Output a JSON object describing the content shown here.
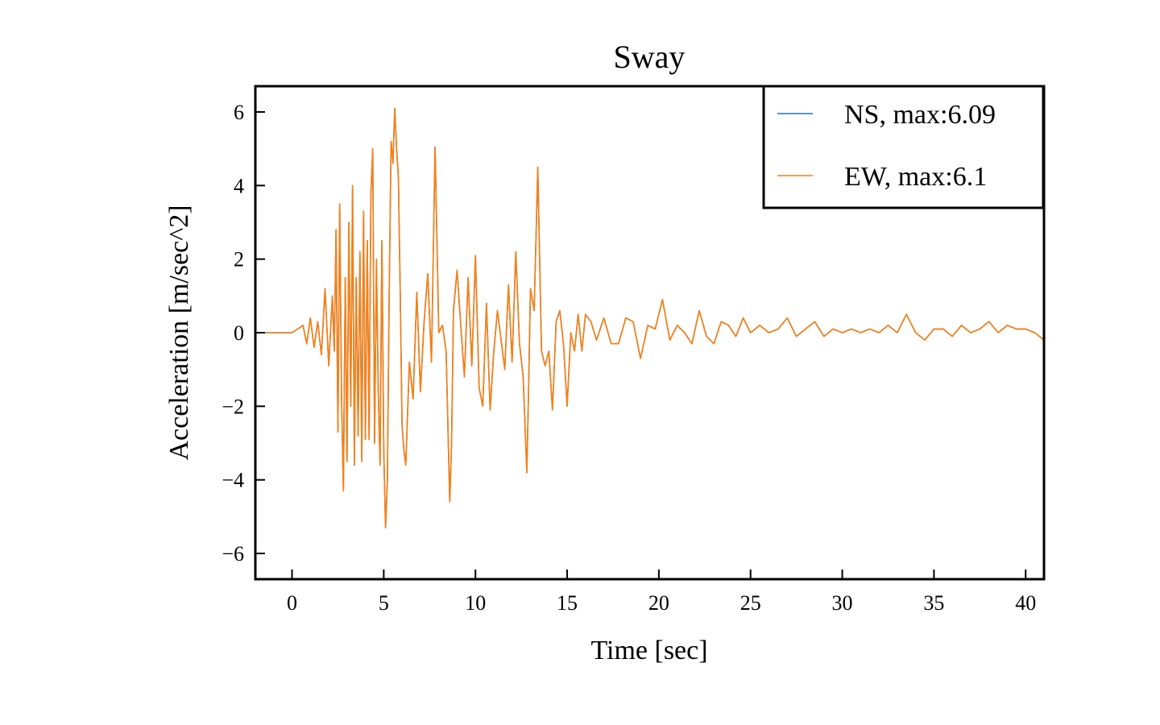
{
  "chart_data": {
    "type": "line",
    "title": "Sway",
    "xlabel": "Time [sec]",
    "ylabel": "Acceleration [m/sec^2]",
    "xlim": [
      -2,
      41
    ],
    "ylim": [
      -6.7,
      6.7
    ],
    "xticks": [
      0,
      5,
      10,
      15,
      20,
      25,
      30,
      35,
      40
    ],
    "yticks": [
      -6,
      -4,
      -2,
      0,
      2,
      4,
      6
    ],
    "ytick_labels": [
      "−6",
      "−4",
      "−2",
      "0",
      "2",
      "4",
      "6"
    ],
    "grid": false,
    "legend_position": "top-right",
    "series": [
      {
        "name": "NS, max:6.09",
        "color": "#1f77b4",
        "x": [
          -2.0,
          0.0,
          0.6,
          0.8,
          1.0,
          1.2,
          1.4,
          1.6,
          1.8,
          2.0,
          2.2,
          2.3,
          2.4,
          2.5,
          2.6,
          2.7,
          2.8,
          2.9,
          3.0,
          3.1,
          3.2,
          3.3,
          3.4,
          3.5,
          3.6,
          3.7,
          3.8,
          3.9,
          4.0,
          4.1,
          4.2,
          4.3,
          4.4,
          4.5,
          4.6,
          4.7,
          4.8,
          4.9,
          5.0,
          5.1,
          5.2,
          5.3,
          5.4,
          5.5,
          5.6,
          5.7,
          5.8,
          5.9,
          6.0,
          6.1,
          6.2,
          6.4,
          6.6,
          6.8,
          7.0,
          7.2,
          7.4,
          7.6,
          7.8,
          8.0,
          8.2,
          8.4,
          8.6,
          8.7,
          8.8,
          9.0,
          9.2,
          9.4,
          9.6,
          9.8,
          10.0,
          10.2,
          10.4,
          10.6,
          10.8,
          11.0,
          11.2,
          11.4,
          11.6,
          11.8,
          12.0,
          12.2,
          12.4,
          12.6,
          12.8,
          12.9,
          13.0,
          13.2,
          13.4,
          13.6,
          13.8,
          14.0,
          14.2,
          14.4,
          14.6,
          14.8,
          15.0,
          15.2,
          15.4,
          15.6,
          15.8,
          16.0,
          16.3,
          16.6,
          17.0,
          17.4,
          17.8,
          18.2,
          18.6,
          19.0,
          19.4,
          19.8,
          20.2,
          20.6,
          21.0,
          21.4,
          21.8,
          22.2,
          22.6,
          23.0,
          23.4,
          23.8,
          24.2,
          24.6,
          25.0,
          25.5,
          26.0,
          26.5,
          27.0,
          27.5,
          28.0,
          28.5,
          29.0,
          29.5,
          30.0,
          30.5,
          31.0,
          31.5,
          32.0,
          32.5,
          33.0,
          33.5,
          34.0,
          34.5,
          35.0,
          35.5,
          36.0,
          36.5,
          37.0,
          37.5,
          38.0,
          38.5,
          39.0,
          39.5,
          40.0,
          40.5,
          41.0
        ],
        "y": [
          0.0,
          0.0,
          0.2,
          -0.3,
          0.4,
          -0.4,
          0.3,
          -0.6,
          1.2,
          -0.9,
          1.0,
          -0.5,
          2.8,
          -2.7,
          3.5,
          -1.8,
          -4.3,
          1.5,
          -3.5,
          3.0,
          -2.0,
          4.0,
          -3.6,
          1.5,
          -2.8,
          2.2,
          -3.5,
          3.3,
          -2.9,
          2.5,
          -2.9,
          3.8,
          5.0,
          -3.0,
          2.0,
          -1.5,
          -3.6,
          2.5,
          -3.2,
          -5.3,
          -4.0,
          1.2,
          5.2,
          4.6,
          6.09,
          5.0,
          4.2,
          1.0,
          -2.5,
          -3.2,
          -3.6,
          -0.8,
          -1.8,
          1.1,
          -1.6,
          0.3,
          1.6,
          -0.8,
          5.05,
          0.0,
          0.2,
          -0.5,
          -4.6,
          -3.0,
          0.6,
          1.7,
          0.2,
          -1.2,
          1.5,
          -0.9,
          2.1,
          -1.5,
          -2.0,
          0.8,
          -2.1,
          -0.5,
          0.6,
          -0.2,
          -1.0,
          1.3,
          -0.8,
          2.2,
          -0.3,
          -1.2,
          -3.8,
          -1.5,
          1.2,
          0.6,
          4.5,
          -0.5,
          -0.9,
          -0.5,
          -2.1,
          0.3,
          0.6,
          -0.3,
          -2.0,
          0.0,
          -0.5,
          0.5,
          -0.5,
          0.5,
          0.3,
          -0.2,
          0.4,
          -0.3,
          -0.3,
          0.4,
          0.3,
          -0.7,
          0.2,
          0.1,
          0.9,
          -0.2,
          0.2,
          0.0,
          -0.3,
          0.6,
          -0.1,
          -0.3,
          0.3,
          0.2,
          -0.1,
          0.4,
          0.0,
          0.2,
          0.0,
          0.1,
          0.4,
          -0.1,
          0.1,
          0.3,
          -0.1,
          0.1,
          0.0,
          0.1,
          0.0,
          0.1,
          0.0,
          0.2,
          0.0,
          0.5,
          0.0,
          -0.2,
          0.1,
          0.1,
          -0.1,
          0.2,
          0.0,
          0.1,
          0.3,
          0.0,
          0.2,
          0.1,
          0.1,
          0.0,
          -0.2
        ]
      },
      {
        "name": "EW, max:6.1",
        "color": "#ff7f0e",
        "x": [
          -2.0,
          0.0,
          0.6,
          0.8,
          1.0,
          1.2,
          1.4,
          1.6,
          1.8,
          2.0,
          2.2,
          2.3,
          2.4,
          2.5,
          2.6,
          2.7,
          2.8,
          2.9,
          3.0,
          3.1,
          3.2,
          3.3,
          3.4,
          3.5,
          3.6,
          3.7,
          3.8,
          3.9,
          4.0,
          4.1,
          4.2,
          4.3,
          4.4,
          4.5,
          4.6,
          4.7,
          4.8,
          4.9,
          5.0,
          5.1,
          5.2,
          5.3,
          5.4,
          5.5,
          5.6,
          5.7,
          5.8,
          5.9,
          6.0,
          6.1,
          6.2,
          6.4,
          6.6,
          6.8,
          7.0,
          7.2,
          7.4,
          7.6,
          7.8,
          8.0,
          8.2,
          8.4,
          8.6,
          8.7,
          8.8,
          9.0,
          9.2,
          9.4,
          9.6,
          9.8,
          10.0,
          10.2,
          10.4,
          10.6,
          10.8,
          11.0,
          11.2,
          11.4,
          11.6,
          11.8,
          12.0,
          12.2,
          12.4,
          12.6,
          12.8,
          12.9,
          13.0,
          13.2,
          13.4,
          13.6,
          13.8,
          14.0,
          14.2,
          14.4,
          14.6,
          14.8,
          15.0,
          15.2,
          15.4,
          15.6,
          15.8,
          16.0,
          16.3,
          16.6,
          17.0,
          17.4,
          17.8,
          18.2,
          18.6,
          19.0,
          19.4,
          19.8,
          20.2,
          20.6,
          21.0,
          21.4,
          21.8,
          22.2,
          22.6,
          23.0,
          23.4,
          23.8,
          24.2,
          24.6,
          25.0,
          25.5,
          26.0,
          26.5,
          27.0,
          27.5,
          28.0,
          28.5,
          29.0,
          29.5,
          30.0,
          30.5,
          31.0,
          31.5,
          32.0,
          32.5,
          33.0,
          33.5,
          34.0,
          34.5,
          35.0,
          35.5,
          36.0,
          36.5,
          37.0,
          37.5,
          38.0,
          38.5,
          39.0,
          39.5,
          40.0,
          40.5,
          41.0
        ],
        "y": [
          0.0,
          0.0,
          0.2,
          -0.3,
          0.4,
          -0.4,
          0.3,
          -0.6,
          1.2,
          -0.9,
          1.0,
          -0.5,
          2.8,
          -2.7,
          3.5,
          -1.8,
          -4.3,
          1.5,
          -3.5,
          3.0,
          -2.0,
          4.0,
          -3.6,
          1.5,
          -2.8,
          2.2,
          -3.5,
          3.3,
          -2.9,
          2.5,
          -2.9,
          3.8,
          5.0,
          -3.0,
          2.0,
          -1.5,
          -3.6,
          2.5,
          -3.2,
          -5.3,
          -4.0,
          1.2,
          5.2,
          4.6,
          6.1,
          5.0,
          4.2,
          1.0,
          -2.5,
          -3.2,
          -3.6,
          -0.8,
          -1.8,
          1.1,
          -1.6,
          0.3,
          1.6,
          -0.8,
          5.05,
          0.0,
          0.2,
          -0.5,
          -4.6,
          -3.0,
          0.6,
          1.7,
          0.2,
          -1.2,
          1.5,
          -0.9,
          2.1,
          -1.5,
          -2.0,
          0.8,
          -2.1,
          -0.5,
          0.6,
          -0.2,
          -1.0,
          1.3,
          -0.8,
          2.2,
          -0.3,
          -1.2,
          -3.8,
          -1.5,
          1.2,
          0.6,
          4.5,
          -0.5,
          -0.9,
          -0.5,
          -2.1,
          0.3,
          0.6,
          -0.3,
          -2.0,
          0.0,
          -0.5,
          0.5,
          -0.5,
          0.5,
          0.3,
          -0.2,
          0.4,
          -0.3,
          -0.3,
          0.4,
          0.3,
          -0.7,
          0.2,
          0.1,
          0.9,
          -0.2,
          0.2,
          0.0,
          -0.3,
          0.6,
          -0.1,
          -0.3,
          0.3,
          0.2,
          -0.1,
          0.4,
          0.0,
          0.2,
          0.0,
          0.1,
          0.4,
          -0.1,
          0.1,
          0.3,
          -0.1,
          0.1,
          0.0,
          0.1,
          0.0,
          0.1,
          0.0,
          0.2,
          0.0,
          0.5,
          0.0,
          -0.2,
          0.1,
          0.1,
          -0.1,
          0.2,
          0.0,
          0.1,
          0.3,
          0.0,
          0.2,
          0.1,
          0.1,
          0.0,
          -0.2
        ]
      }
    ]
  }
}
